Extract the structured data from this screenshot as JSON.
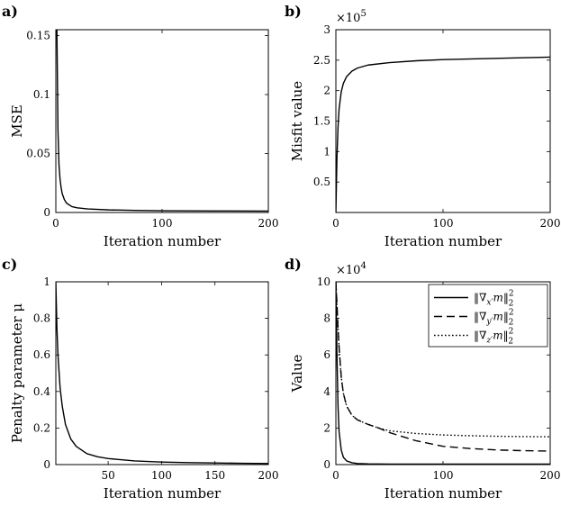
{
  "chart_data": [
    {
      "panel_label": "a)",
      "type": "line",
      "xlabel": "Iteration number",
      "ylabel": "MSE",
      "xlim": [
        0,
        200
      ],
      "ylim": [
        0,
        0.155
      ],
      "xticks": [
        0,
        100,
        200
      ],
      "xtick_labels": [
        "0",
        "100",
        "200"
      ],
      "yticks": [
        0,
        0.05,
        0.1,
        0.15
      ],
      "ytick_labels": [
        "0",
        "0.05",
        "0.1",
        "0.15"
      ],
      "grid": false,
      "series": [
        {
          "style": "solid",
          "color": "#000000",
          "x": [
            1,
            2,
            3,
            4,
            5,
            6,
            8,
            10,
            15,
            20,
            30,
            50,
            75,
            100,
            150,
            200
          ],
          "y": [
            0.155,
            0.07,
            0.04,
            0.028,
            0.021,
            0.016,
            0.011,
            0.008,
            0.005,
            0.004,
            0.003,
            0.0022,
            0.0018,
            0.0015,
            0.0013,
            0.0012
          ]
        }
      ]
    },
    {
      "panel_label": "b)",
      "type": "line",
      "xlabel": "Iteration number",
      "ylabel": "Misfit value",
      "multiplier": "×10",
      "multiplier_exp": "5",
      "xlim": [
        0,
        200
      ],
      "ylim": [
        0,
        3
      ],
      "xticks": [
        0,
        100,
        200
      ],
      "xtick_labels": [
        "0",
        "100",
        "200"
      ],
      "yticks": [
        0.5,
        1,
        1.5,
        2,
        2.5,
        3
      ],
      "ytick_labels": [
        "0.5",
        "1",
        "1.5",
        "2",
        "2.5",
        "3"
      ],
      "grid": false,
      "series": [
        {
          "style": "solid",
          "color": "#000000",
          "x": [
            0,
            1,
            2,
            3,
            5,
            7,
            10,
            15,
            20,
            30,
            50,
            75,
            100,
            150,
            200
          ],
          "y": [
            0,
            0.9,
            1.4,
            1.7,
            1.98,
            2.12,
            2.23,
            2.32,
            2.37,
            2.42,
            2.46,
            2.49,
            2.51,
            2.53,
            2.55
          ]
        }
      ]
    },
    {
      "panel_label": "c)",
      "type": "line",
      "xlabel": "Iteration number",
      "ylabel": "Penalty parameter μ",
      "xlim": [
        1,
        200
      ],
      "ylim": [
        0,
        1
      ],
      "xticks": [
        50,
        100,
        150,
        200
      ],
      "xtick_labels": [
        "50",
        "100",
        "150",
        "200"
      ],
      "yticks": [
        0,
        0.2,
        0.4,
        0.6,
        0.8,
        1
      ],
      "ytick_labels": [
        "0",
        "0.2",
        "0.4",
        "0.6",
        "0.8",
        "1"
      ],
      "grid": false,
      "series": [
        {
          "style": "solid",
          "color": "#000000",
          "x": [
            1,
            2,
            3,
            5,
            7,
            10,
            15,
            20,
            30,
            40,
            50,
            75,
            100,
            125,
            150,
            175,
            200
          ],
          "y": [
            1,
            0.75,
            0.6,
            0.42,
            0.32,
            0.22,
            0.14,
            0.1,
            0.06,
            0.043,
            0.033,
            0.02,
            0.014,
            0.011,
            0.009,
            0.007,
            0.006
          ]
        }
      ]
    },
    {
      "panel_label": "d)",
      "type": "line",
      "xlabel": "Iteration number",
      "ylabel": "Value",
      "multiplier": "×10",
      "multiplier_exp": "4",
      "xlim": [
        0,
        200
      ],
      "ylim": [
        0,
        10
      ],
      "xticks": [
        0,
        100,
        200
      ],
      "xtick_labels": [
        "0",
        "100",
        "200"
      ],
      "yticks": [
        0,
        2,
        4,
        6,
        8,
        10
      ],
      "ytick_labels": [
        "0",
        "2",
        "4",
        "6",
        "8",
        "10"
      ],
      "grid": false,
      "legend_position": "top-right",
      "series": [
        {
          "name": "‖∇x′m‖²₂",
          "legend_parts": [
            "‖∇",
            "x′",
            "m‖",
            "2",
            "2"
          ],
          "style": "solid",
          "color": "#000000",
          "x": [
            0,
            1,
            2,
            3,
            5,
            7,
            10,
            15,
            20,
            30,
            50,
            100,
            150,
            200
          ],
          "y": [
            10,
            6,
            3.2,
            1.8,
            0.8,
            0.4,
            0.2,
            0.1,
            0.06,
            0.04,
            0.03,
            0.03,
            0.03,
            0.03
          ]
        },
        {
          "name": "‖∇y′m‖²₂",
          "legend_parts": [
            "‖∇",
            "y′",
            "m‖",
            "2",
            "2"
          ],
          "style": "dashed",
          "color": "#000000",
          "x": [
            0,
            1,
            2,
            3,
            5,
            7,
            10,
            15,
            20,
            30,
            40,
            50,
            75,
            100,
            125,
            150,
            175,
            200
          ],
          "y": [
            10,
            8.8,
            7.5,
            6.4,
            4.8,
            3.9,
            3.2,
            2.7,
            2.45,
            2.2,
            2.0,
            1.75,
            1.3,
            1.0,
            0.88,
            0.8,
            0.76,
            0.74
          ]
        },
        {
          "name": "‖∇z′m‖²₂",
          "legend_parts": [
            "‖∇",
            "z′",
            "m‖",
            "2",
            "2"
          ],
          "style": "dotted",
          "color": "#000000",
          "x": [
            0,
            1,
            2,
            3,
            5,
            7,
            10,
            15,
            20,
            30,
            40,
            50,
            75,
            100,
            125,
            150,
            175,
            200
          ],
          "y": [
            10,
            8.8,
            7.5,
            6.4,
            4.8,
            3.9,
            3.2,
            2.7,
            2.45,
            2.2,
            2.0,
            1.85,
            1.7,
            1.62,
            1.58,
            1.55,
            1.53,
            1.52
          ]
        }
      ]
    }
  ]
}
